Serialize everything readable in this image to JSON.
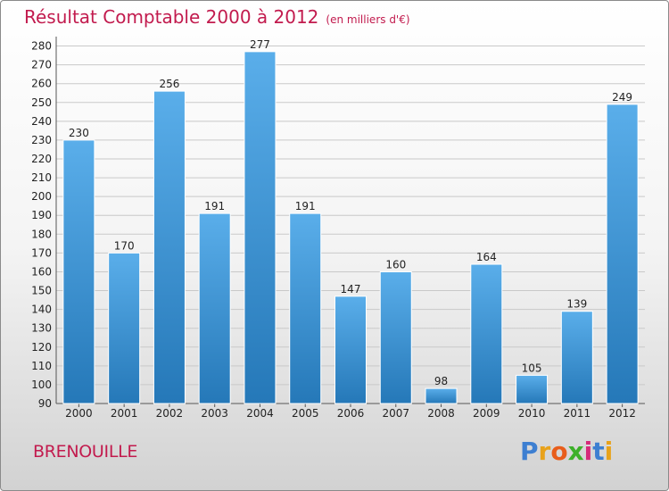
{
  "title": "Résultat Comptable 2000 à 2012",
  "unit": "(en milliers d'€)",
  "commune": "BRENOUILLE",
  "logo": {
    "letters": [
      "P",
      "r",
      "o",
      "x",
      "i",
      "t",
      "i"
    ],
    "colors": [
      "#3d7fd1",
      "#e8a21b",
      "#e85d1b",
      "#3db02a",
      "#d62a7a",
      "#3d7fd1",
      "#e8a21b"
    ]
  },
  "colors": {
    "bar_light": "#5aaeea",
    "bar_dark": "#2578b8",
    "title": "#c21b4e"
  },
  "chart_data": {
    "type": "bar",
    "categories": [
      "2000",
      "2001",
      "2002",
      "2003",
      "2004",
      "2005",
      "2006",
      "2007",
      "2008",
      "2009",
      "2010",
      "2011",
      "2012"
    ],
    "values": [
      230,
      170,
      256,
      191,
      277,
      191,
      147,
      160,
      98,
      164,
      105,
      139,
      249
    ],
    "ylim": [
      90,
      280
    ],
    "yticks": [
      90,
      100,
      110,
      120,
      130,
      140,
      150,
      160,
      170,
      180,
      190,
      200,
      210,
      220,
      230,
      240,
      250,
      260,
      270,
      280
    ],
    "grid": true,
    "title": "Résultat Comptable 2000 à 2012",
    "xlabel": "",
    "ylabel": ""
  }
}
